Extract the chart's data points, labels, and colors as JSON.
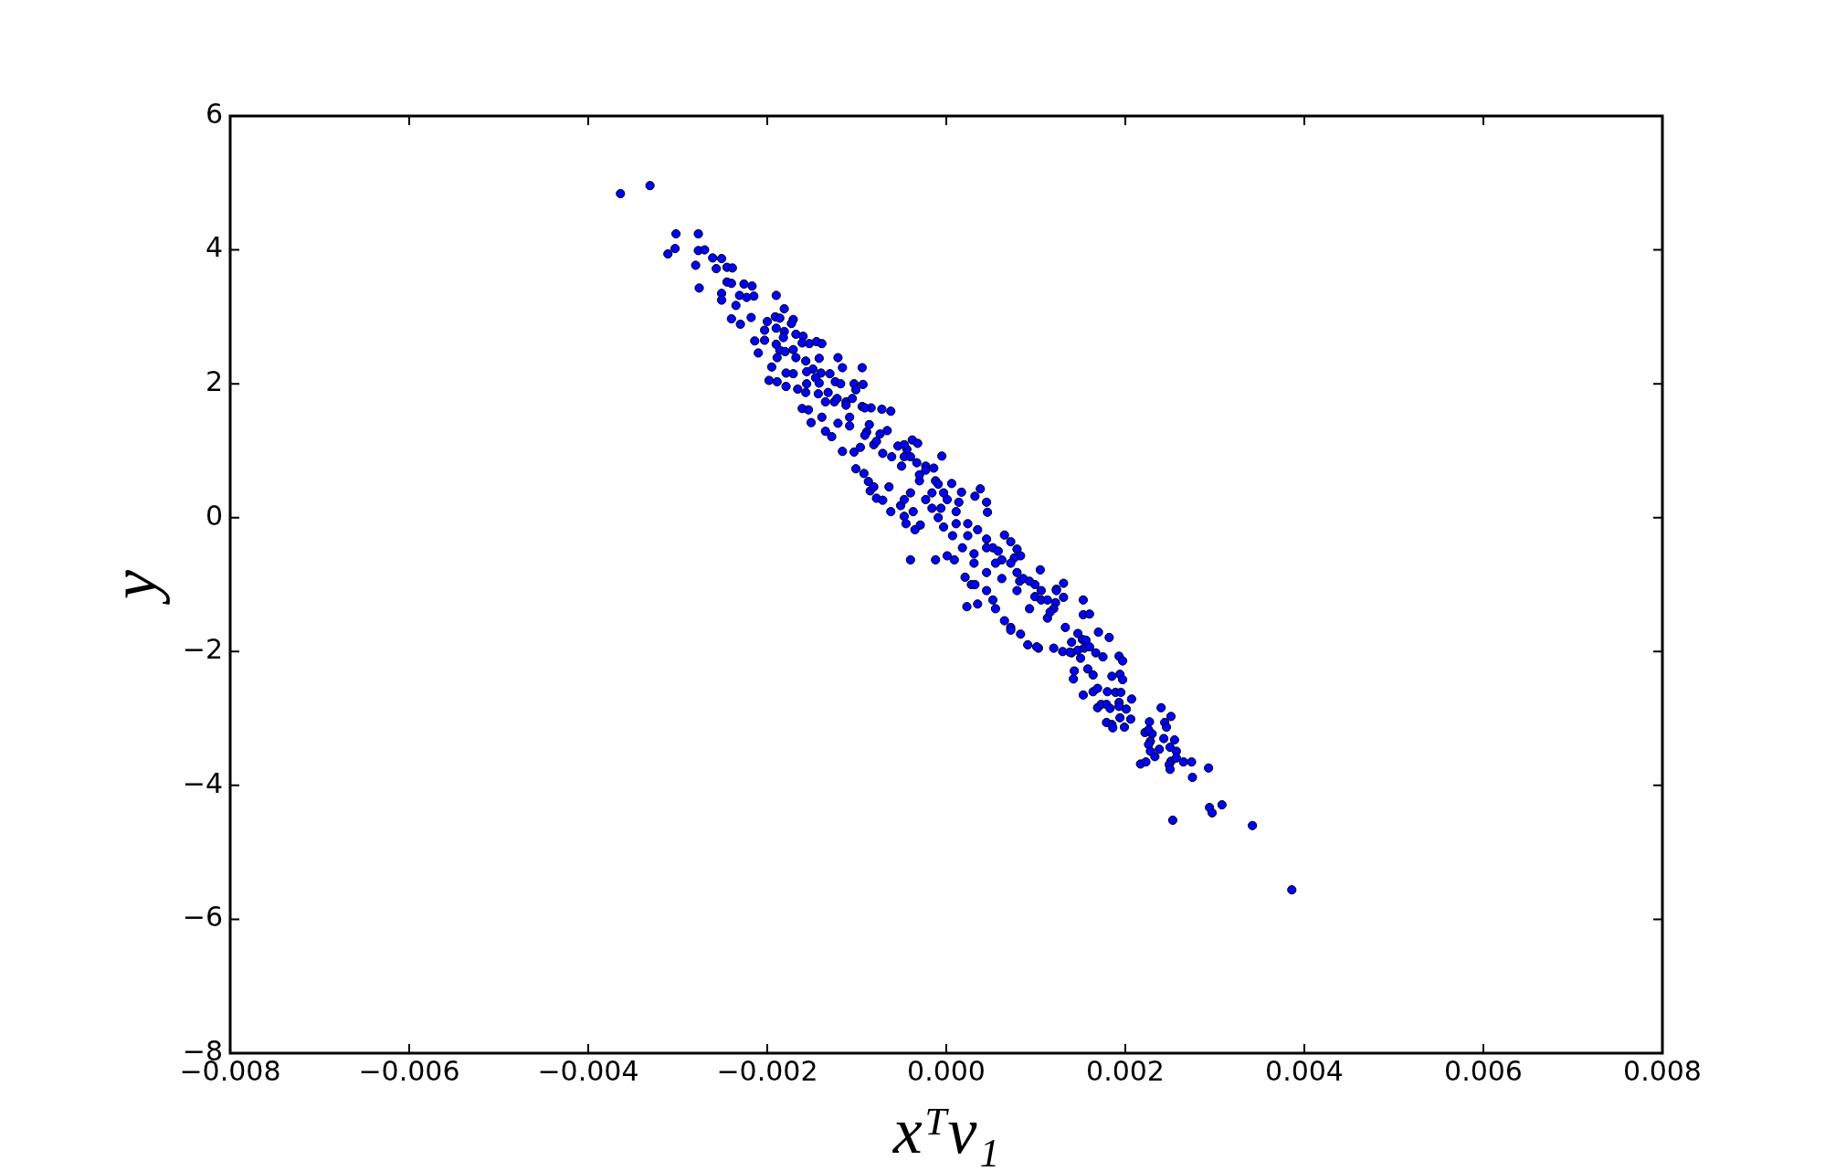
{
  "chart_data": {
    "type": "scatter",
    "xlabel": "xᵀv₁",
    "ylabel": "y",
    "color": "#0000ff",
    "marker": "circle",
    "xlim": [
      -0.008,
      0.008
    ],
    "ylim": [
      -8,
      6
    ],
    "xticks": [
      {
        "value": -0.008,
        "label": "−0.008"
      },
      {
        "value": -0.006,
        "label": "−0.006"
      },
      {
        "value": -0.004,
        "label": "−0.004"
      },
      {
        "value": -0.002,
        "label": "−0.002"
      },
      {
        "value": 0,
        "label": "0.000"
      },
      {
        "value": 0.002,
        "label": "0.002"
      },
      {
        "value": 0.004,
        "label": "0.004"
      },
      {
        "value": 0.006,
        "label": "0.006"
      },
      {
        "value": 0.008,
        "label": "0.008"
      }
    ],
    "yticks": [
      {
        "value": -8,
        "label": "−8"
      },
      {
        "value": -6,
        "label": "−6"
      },
      {
        "value": -4,
        "label": "−4"
      },
      {
        "value": -2,
        "label": "−2"
      },
      0,
      2,
      4,
      6
    ],
    "x": [
      -0.00364,
      -0.00331,
      -0.00302,
      -0.00277,
      -0.00311,
      -0.00303,
      -0.00277,
      -0.0027,
      -0.0028,
      -0.00261,
      -0.00251,
      -0.00257,
      -0.00245,
      -0.00239,
      -0.00276,
      -0.00245,
      -0.0024,
      -0.00251,
      -0.00251,
      -0.00226,
      -0.00217,
      -0.00231,
      -0.00223,
      -0.00215,
      -0.00235,
      -0.0024,
      -0.0023,
      -0.00218,
      -0.0019,
      -0.00181,
      -0.002,
      -0.00191,
      -0.00186,
      -0.00203,
      -0.0019,
      -0.00181,
      -0.00171,
      -0.00173,
      -0.00214,
      -0.00203,
      -0.0021,
      -0.00182,
      -0.00168,
      -0.0016,
      -0.00161,
      -0.00153,
      -0.00145,
      -0.00139,
      -0.0019,
      -0.00186,
      -0.0018,
      -0.00171,
      -0.00189,
      -0.00168,
      -0.00195,
      -0.00198,
      -0.00189,
      -0.00179,
      -0.00171,
      -0.00179,
      -0.00157,
      -0.00142,
      -0.00121,
      -0.00116,
      -0.00094,
      -0.00149,
      -0.0014,
      -0.0013,
      -0.00156,
      -0.00142,
      -0.00124,
      -0.00166,
      -0.00157,
      -0.00143,
      -0.00161,
      -0.00154,
      -0.00151,
      -0.00135,
      -0.00128,
      -0.00116,
      -0.00103,
      -0.00103,
      -0.00093,
      -0.00112,
      -0.00105,
      -0.00094,
      -0.00084,
      -0.00072,
      -0.00062,
      -0.00135,
      -0.00139,
      -0.00121,
      -0.00108,
      -0.00089,
      -0.00074,
      -0.00066,
      -0.00038,
      -0.00032,
      -0.00096,
      -0.00081,
      -0.00054,
      -0.00044,
      -0.00101,
      -0.00092,
      -0.00087,
      -0.00085,
      -0.00078,
      -0.00071,
      -0.00062,
      -0.00051,
      -0.00047,
      -0.00045,
      -0.0004,
      -0.00035,
      -0.00029,
      -0.00012,
      1e-05,
      9e-05,
      0.00023,
      0.00035,
      0.00021,
      0.00028,
      0.00032,
      -5e-05,
      -0.00014,
      -0.00012,
      6e-05,
      0.00017,
      0.00038,
      0.00032,
      0.00045,
      0.00046,
      0.00065,
      0.00072,
      0.00079,
      0.00083,
      0.00076,
      0.00105,
      0.00131,
      0.00131,
      0.00153,
      0.00153,
      0.0016,
      0.0017,
      0.00182,
      0.00193,
      0.00123,
      0.00122,
      0.00093,
      0.00113,
      0.00083,
      0.00091,
      0.00103,
      0.00055,
      0.00065,
      0.00072,
      0.00045,
      0.00052,
      0.0014,
      0.00154,
      0.00167,
      0.0013,
      0.0014,
      -0.00016,
      -6e-05,
      0.00011,
      0.00024,
      0.00045,
      0.00062,
      0.00079,
      0.00099,
      -0.0003,
      -0.0005,
      -0.00071,
      -0.00091,
      -0.00108,
      -0.00125,
      -0.00118,
      -0.00047,
      -0.00023,
      -0.00064,
      -0.00081,
      0.00031,
      0.00055,
      0.00099,
      0.0012,
      0.00197,
      0.00185,
      0.00194,
      0.00197,
      0.00153,
      0.00142,
      0.00143,
      0.00164,
      0.00169,
      0.00169,
      0.0018,
      0.00189,
      0.00195,
      0.00207,
      0.00173,
      0.00179,
      0.00193,
      0.00193,
      0.00183,
      0.00201,
      0.00179,
      0.00185,
      0.00186,
      0.00194,
      0.00206,
      0.00199,
      0.0024,
      0.00251,
      0.00227,
      0.00244,
      0.00246,
      0.00222,
      0.0023,
      0.00226,
      0.00243,
      0.00255,
      0.0025,
      0.00257,
      0.00228,
      0.00226,
      0.00228,
      0.00238,
      0.00233,
      0.00217,
      0.00223,
      0.00251,
      0.00249,
      0.0025,
      0.00257,
      0.00265,
      0.00274,
      0.00293,
      0.00275,
      0.00253,
      0.00294,
      0.00297,
      0.00308,
      0.00342,
      0.00386,
      0.00082,
      0.00106,
      0.00116,
      0.00133,
      0.00101,
      0.0012,
      0.00138,
      0.0015,
      0.00158,
      0.00164,
      0.00072,
      0.00152,
      0.00156,
      0.0016,
      0.00147,
      0.00175,
      -0.00156,
      -0.00146,
      -0.00132,
      -0.00122,
      -0.00112,
      -0.00101,
      -0.00091,
      -0.00086,
      -0.00078,
      -0.00061,
      -0.00047,
      -0.0004,
      -0.00033,
      -0.00023,
      -0.0003,
      -9e-05,
      -3e-05,
      -0.00023,
      -0.00016,
      1e-05,
      0.00011,
      0.00014,
      0.00024,
      0.00035,
      0.00045,
      0.00052,
      0.00058,
      0.00072,
      0.00086,
      0.00093,
      0.00106,
      0.00113,
      0.00123,
      0.00147,
      7e-05,
      0.00018,
      0.00031,
      0.00045,
      0.00062,
      0.00079,
      -0.0004,
      -0.00047,
      -0.00037,
      -9e-05,
      -3e-05
    ],
    "values": [
      4.84,
      4.96,
      4.24,
      4.24,
      3.94,
      4.02,
      3.99,
      4.0,
      3.77,
      3.88,
      3.87,
      3.72,
      3.74,
      3.73,
      3.43,
      3.52,
      3.5,
      3.35,
      3.25,
      3.49,
      3.46,
      3.32,
      3.29,
      3.31,
      3.17,
      2.97,
      2.89,
      2.99,
      3.32,
      3.12,
      2.93,
      3.0,
      2.98,
      2.8,
      2.83,
      2.78,
      2.96,
      2.9,
      2.64,
      2.65,
      2.46,
      2.69,
      2.74,
      2.71,
      2.61,
      2.6,
      2.63,
      2.6,
      2.59,
      2.5,
      2.48,
      2.51,
      2.39,
      2.39,
      2.25,
      2.05,
      2.03,
      2.16,
      2.15,
      1.96,
      2.34,
      2.38,
      2.39,
      2.24,
      2.24,
      2.22,
      2.16,
      2.15,
      2.0,
      2.01,
      2.03,
      1.92,
      1.87,
      1.85,
      1.63,
      1.61,
      1.42,
      1.29,
      1.21,
      0.99,
      0.98,
      2.0,
      1.99,
      1.73,
      1.78,
      1.66,
      1.64,
      1.62,
      1.59,
      1.73,
      1.5,
      1.41,
      1.37,
      1.28,
      1.25,
      1.3,
      1.16,
      1.11,
      1.05,
      1.09,
      1.07,
      1.02,
      0.73,
      0.66,
      0.54,
      0.4,
      0.29,
      0.26,
      0.09,
      0.18,
      0.02,
      -0.09,
      -0.63,
      -0.18,
      -0.11,
      -0.63,
      -0.57,
      -0.63,
      -1.33,
      -1.29,
      -0.89,
      -1.0,
      -1.0,
      0.92,
      0.74,
      0.55,
      0.51,
      0.38,
      0.43,
      0.32,
      0.23,
      0.08,
      -0.26,
      -0.36,
      -0.47,
      -0.57,
      -0.6,
      -0.78,
      -0.98,
      -1.19,
      -1.23,
      -1.45,
      -1.44,
      -1.71,
      -1.79,
      -2.07,
      -1.07,
      -1.27,
      -1.36,
      -1.5,
      -1.74,
      -1.9,
      -1.95,
      -1.36,
      -1.54,
      -1.64,
      -1.09,
      -1.23,
      -1.86,
      -1.95,
      -2.02,
      -2.0,
      -2.02,
      0.37,
      0.14,
      -0.09,
      -0.27,
      -0.45,
      -0.63,
      -0.82,
      -1.0,
      0.55,
      0.77,
      0.96,
      1.23,
      1.5,
      1.73,
      2.0,
      0.91,
      0.77,
      0.46,
      0.46,
      -0.54,
      -0.68,
      -1.18,
      -1.36,
      -2.14,
      -2.37,
      -2.34,
      -2.42,
      -2.65,
      -2.41,
      -2.29,
      -2.6,
      -2.55,
      -2.84,
      -2.6,
      -2.61,
      -2.61,
      -2.71,
      -2.79,
      -2.79,
      -2.76,
      -2.82,
      -2.85,
      -2.86,
      -3.06,
      -3.09,
      -3.14,
      -2.99,
      -3.01,
      -3.13,
      -2.84,
      -2.97,
      -3.05,
      -3.06,
      -3.13,
      -3.21,
      -3.23,
      -3.17,
      -3.3,
      -3.32,
      -3.43,
      -3.49,
      -3.34,
      -3.39,
      -3.49,
      -3.46,
      -3.57,
      -3.68,
      -3.65,
      -3.64,
      -3.69,
      -3.76,
      -3.59,
      -3.65,
      -3.65,
      -3.74,
      -3.88,
      -4.52,
      -4.33,
      -4.41,
      -4.29,
      -4.6,
      -5.56,
      -0.95,
      -1.23,
      -1.41,
      -1.64,
      -1.93,
      -1.95,
      -2.01,
      -2.1,
      -2.26,
      -2.35,
      -1.68,
      -1.82,
      -1.83,
      -1.93,
      -1.98,
      -2.08,
      2.18,
      2.09,
      1.87,
      1.78,
      1.68,
      1.91,
      1.64,
      1.39,
      1.14,
      0.91,
      1.09,
      0.91,
      0.82,
      0.71,
      0.64,
      0.5,
      0.37,
      0.27,
      0.14,
      0.27,
      0.09,
      0.23,
      -0.09,
      -0.18,
      -0.32,
      -0.45,
      -0.5,
      -0.68,
      -0.91,
      -0.95,
      -1.09,
      -1.23,
      -1.09,
      -1.73,
      -0.27,
      -0.45,
      -0.68,
      -0.82,
      -0.91,
      -1.09,
      0.37,
      0.27,
      0.09,
      0.0,
      -0.14
    ]
  }
}
